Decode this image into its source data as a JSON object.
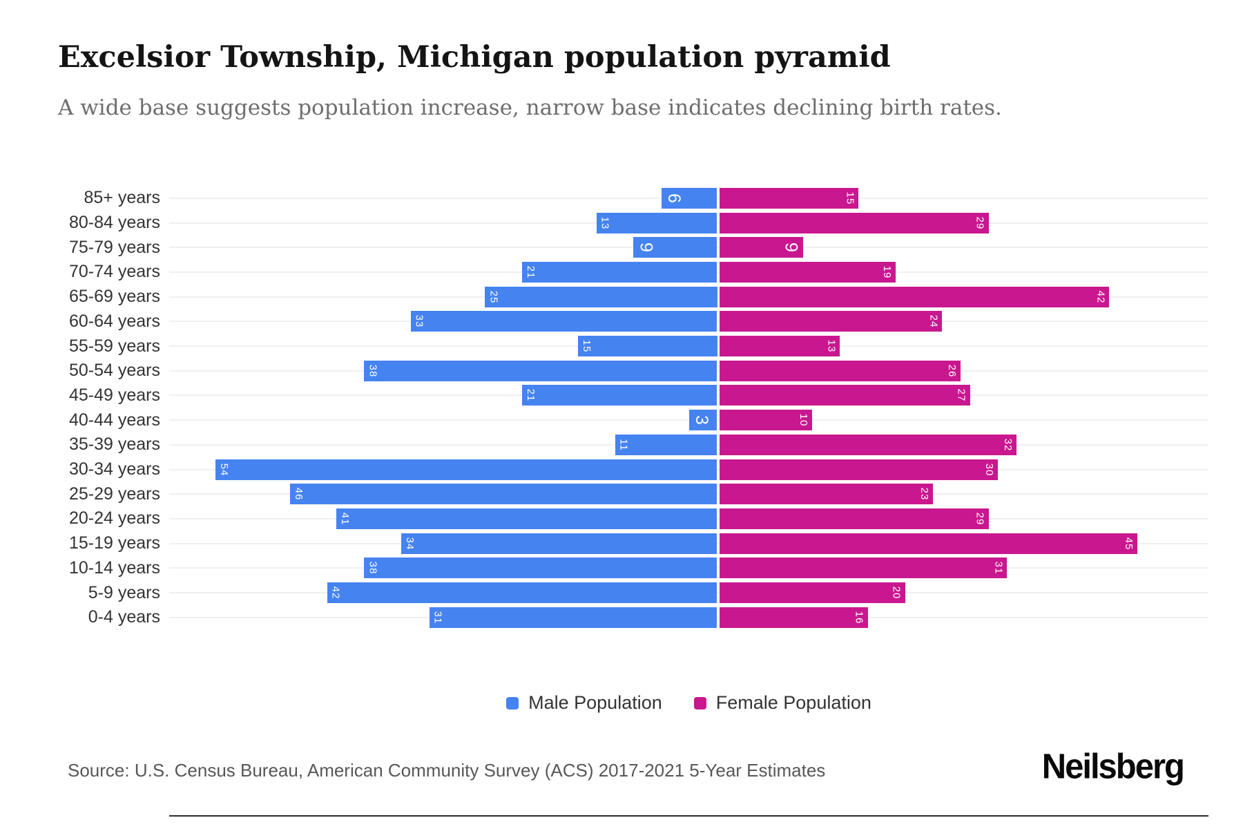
{
  "header": {
    "title": "Excelsior Township, Michigan population pyramid",
    "subtitle": "A wide base suggests population increase, narrow base indicates declining birth rates."
  },
  "chart_data": {
    "type": "bar",
    "variant": "population-pyramid",
    "categories": [
      "85+ years",
      "80-84 years",
      "75-79 years",
      "70-74 years",
      "65-69 years",
      "60-64 years",
      "55-59 years",
      "50-54 years",
      "45-49 years",
      "40-44 years",
      "35-39 years",
      "30-34 years",
      "25-29 years",
      "20-24 years",
      "15-19 years",
      "10-14 years",
      "5-9 years",
      "0-4 years"
    ],
    "series": [
      {
        "name": "Male Population",
        "side": "left",
        "color": "#4583F0",
        "values": [
          6,
          13,
          9,
          21,
          25,
          33,
          15,
          38,
          21,
          3,
          11,
          54,
          46,
          41,
          34,
          38,
          42,
          31
        ]
      },
      {
        "name": "Female Population",
        "side": "right",
        "color": "#C9188F",
        "values": [
          15,
          29,
          9,
          19,
          42,
          24,
          13,
          26,
          27,
          10,
          32,
          30,
          23,
          29,
          45,
          31,
          20,
          16
        ]
      }
    ],
    "value_labels": "white, rotated 90deg, at outer end of each bar",
    "axis_range_each_side": [
      0,
      56
    ],
    "grid": "light horizontal line per category row",
    "legend_position": "bottom-center"
  },
  "legend": {
    "items": [
      {
        "label": "Male Population",
        "color": "#4583F0"
      },
      {
        "label": "Female Population",
        "color": "#C9188F"
      }
    ]
  },
  "footer": {
    "source": "Source: U.S. Census Bureau, American Community Survey (ACS) 2017-2021 5-Year Estimates",
    "brand": "Neilsberg"
  }
}
